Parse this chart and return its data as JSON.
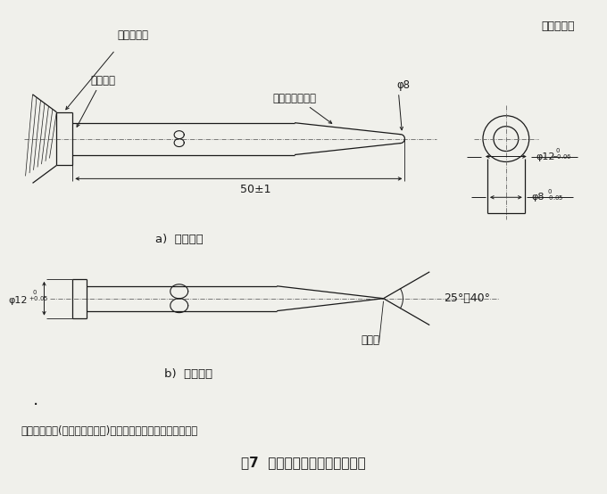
{
  "title": "图7  静电放电发生器的放电电极",
  "unit_label": "单位为毫米",
  "note_text": "注：放电开关(例如真空继电器)应尽可能靠近放电电极头安装。",
  "sublabel_a": "a)  空气放电",
  "sublabel_b": "b)  接触放电",
  "label_generator": "发生器本体",
  "label_see_note": "（见注）",
  "label_replaceable": "可更换的电极头",
  "label_phi8_top": "φ8",
  "label_dim50": "50±1",
  "label_phi12_right": "φ12",
  "label_phi8_right": "φ8",
  "label_phi12_left_b": "φ12",
  "label_tip_point": "尖端点",
  "label_angle": "25°～40°",
  "bg_color": "#f0f0eb",
  "line_color": "#1a1a1a",
  "dash_color": "#666666"
}
